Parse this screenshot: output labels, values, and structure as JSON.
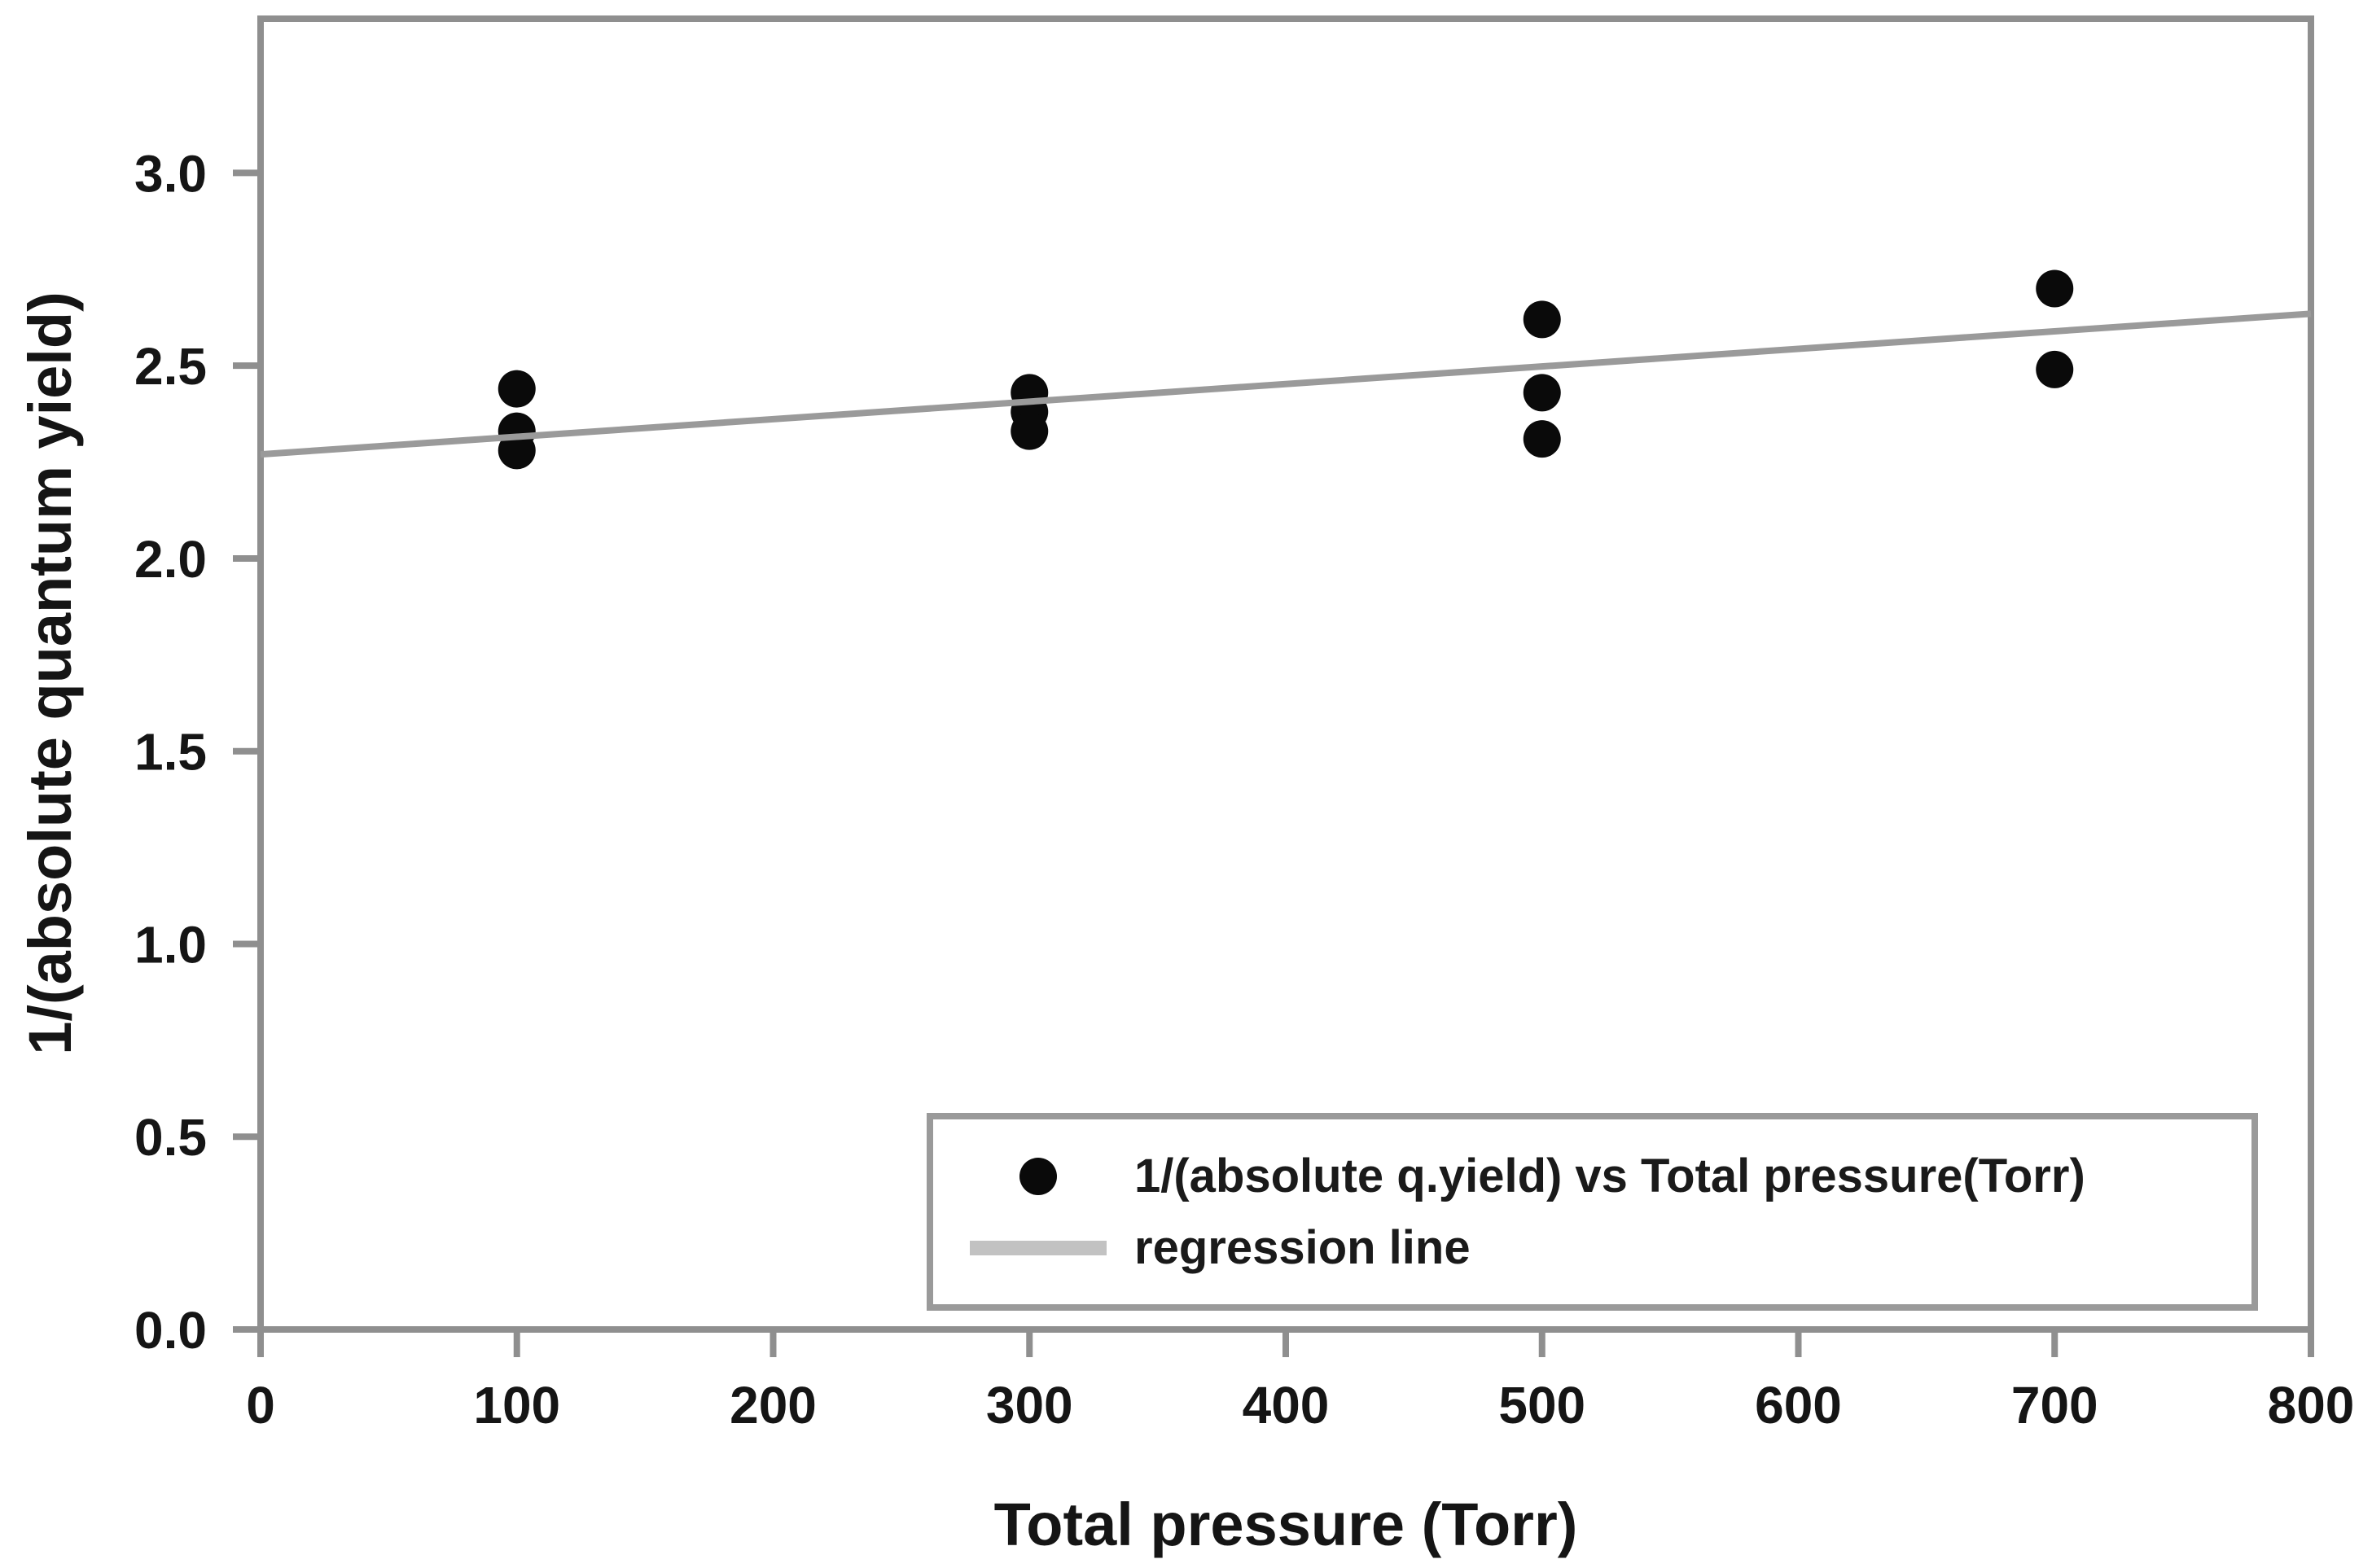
{
  "figure": {
    "background": "#ffffff",
    "frame_color": "#8f8f8f",
    "tick_color": "#8f8f8f",
    "text_color": "#151515",
    "point_color": "#0a0a0a",
    "regression_color": "#9a9a9a"
  },
  "chart_data": {
    "type": "scatter",
    "title": "",
    "xlabel": "Total pressure (Torr)",
    "ylabel": "1/(absolute quantum yield)",
    "xlim": [
      0,
      800
    ],
    "ylim": [
      0,
      3.4
    ],
    "grid": false,
    "legend_position": "inside lower right",
    "x_ticks": [
      0,
      100,
      200,
      300,
      400,
      500,
      600,
      700,
      800
    ],
    "x_tick_labels": [
      "0",
      "100",
      "200",
      "300",
      "400",
      "500",
      "600",
      "700",
      "800"
    ],
    "y_ticks": [
      0.0,
      0.5,
      1.0,
      1.5,
      2.0,
      2.5,
      3.0
    ],
    "y_tick_labels": [
      "0.0",
      "0.5",
      "1.0",
      "1.5",
      "2.0",
      "2.5",
      "3.0"
    ],
    "series": [
      {
        "name": "1/(absolute q.yield) vs Total pressure(Torr)",
        "type": "scatter",
        "marker": "circle",
        "color": "#0a0a0a",
        "points": [
          [
            100,
            2.44
          ],
          [
            100,
            2.33
          ],
          [
            100,
            2.28
          ],
          [
            300,
            2.43
          ],
          [
            300,
            2.38
          ],
          [
            300,
            2.33
          ],
          [
            500,
            2.62
          ],
          [
            500,
            2.43
          ],
          [
            500,
            2.31
          ],
          [
            700,
            2.7
          ],
          [
            700,
            2.49
          ]
        ]
      },
      {
        "name": "regression line",
        "type": "line",
        "color": "#9a9a9a",
        "intercept": 2.27,
        "slope": 0.000456,
        "x_range": [
          0,
          800
        ]
      }
    ]
  }
}
